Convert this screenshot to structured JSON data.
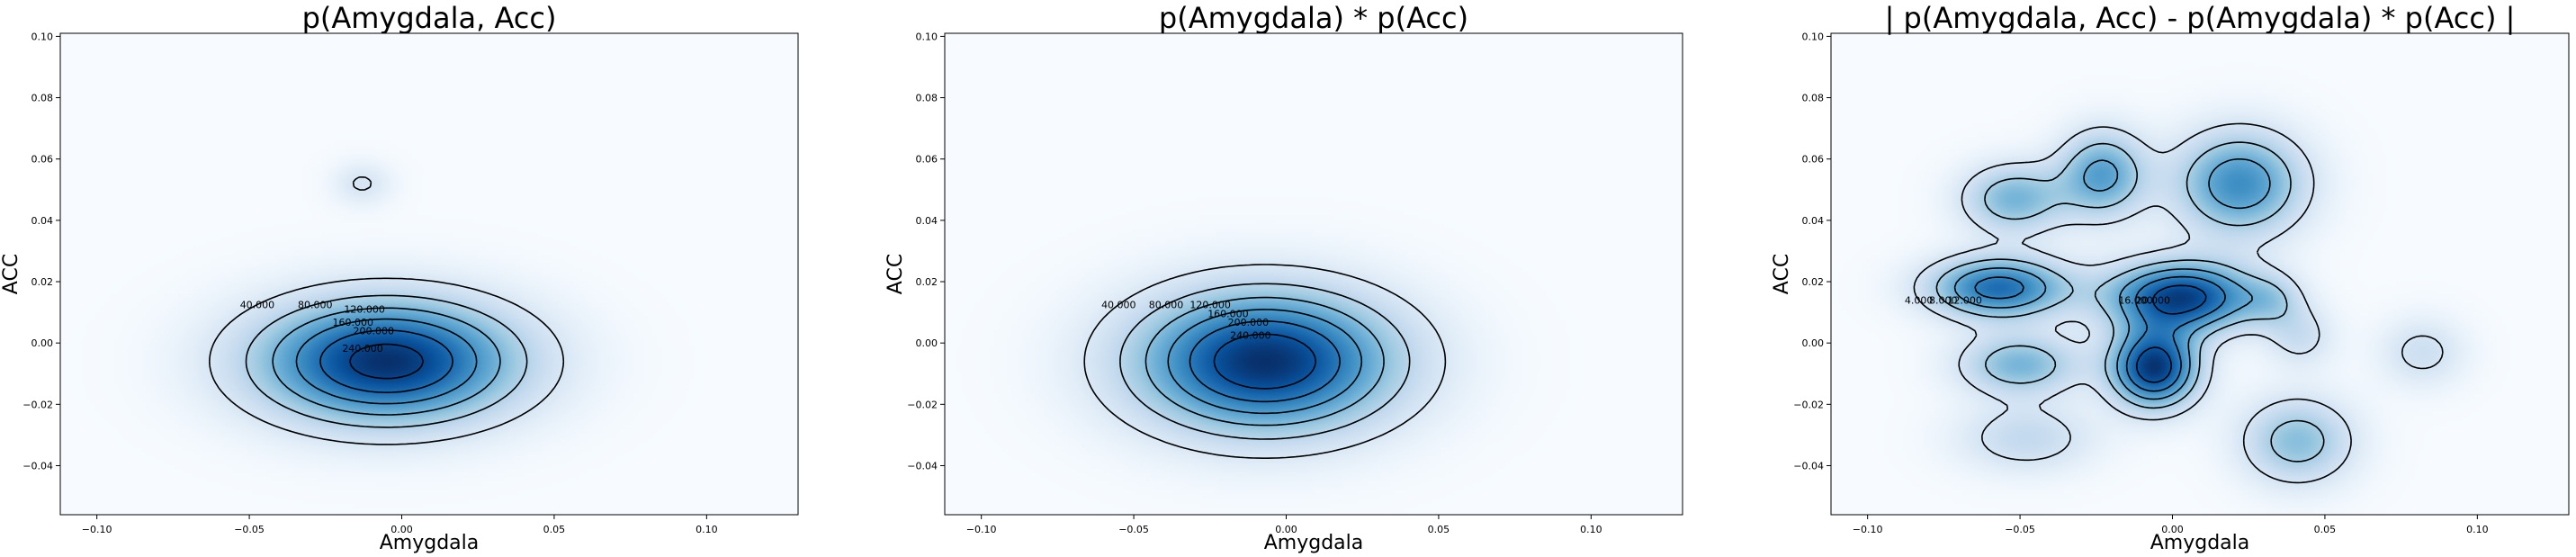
{
  "chart_data": [
    {
      "type": "heatmap",
      "title": "p(Amygdala, Acc)",
      "xlabel": "Amygdala",
      "ylabel": "ACC",
      "xlim": [
        -0.112,
        0.13
      ],
      "ylim": [
        -0.056,
        0.101
      ],
      "xticks": [
        "−0.10",
        "−0.05",
        "0.00",
        "0.05",
        "0.10"
      ],
      "xtick_values": [
        -0.1,
        -0.05,
        0.0,
        0.05,
        0.1
      ],
      "yticks": [
        "−0.04",
        "−0.02",
        "0.00",
        "0.02",
        "0.04",
        "0.06",
        "0.08",
        "0.10"
      ],
      "ytick_values": [
        -0.04,
        -0.02,
        0.0,
        0.02,
        0.04,
        0.06,
        0.08,
        0.1
      ],
      "colormap": "Blues",
      "contour_levels": [
        {
          "value": 40,
          "label": "40.000"
        },
        {
          "value": 80,
          "label": "80.000"
        },
        {
          "value": 120,
          "label": "120.000"
        },
        {
          "value": 160,
          "label": "160.000"
        },
        {
          "value": 200,
          "label": "200.000"
        },
        {
          "value": 240,
          "label": "240.000"
        }
      ],
      "blobs": [
        {
          "x": -0.005,
          "y": -0.006,
          "sx": 0.03,
          "sy": 0.014,
          "amp": 260
        },
        {
          "x": -0.013,
          "y": 0.052,
          "sx": 0.007,
          "sy": 0.005,
          "amp": 44
        }
      ]
    },
    {
      "type": "heatmap",
      "title": "p(Amygdala) * p(Acc)",
      "xlabel": "Amygdala",
      "ylabel": "ACC",
      "xlim": [
        -0.112,
        0.13
      ],
      "ylim": [
        -0.056,
        0.101
      ],
      "xticks": [
        "−0.10",
        "−0.05",
        "0.00",
        "0.05",
        "0.10"
      ],
      "xtick_values": [
        -0.1,
        -0.05,
        0.0,
        0.05,
        0.1
      ],
      "yticks": [
        "−0.04",
        "−0.02",
        "0.00",
        "0.02",
        "0.04",
        "0.06",
        "0.08",
        "0.10"
      ],
      "ytick_values": [
        -0.04,
        -0.02,
        0.0,
        0.02,
        0.04,
        0.06,
        0.08,
        0.1
      ],
      "colormap": "Blues",
      "contour_levels": [
        {
          "value": 40,
          "label": "40.000"
        },
        {
          "value": 80,
          "label": "80.000"
        },
        {
          "value": 120,
          "label": "120.000"
        },
        {
          "value": 160,
          "label": "160.000"
        },
        {
          "value": 200,
          "label": "200.000"
        },
        {
          "value": 240,
          "label": "240.000"
        }
      ],
      "blobs": [
        {
          "x": -0.007,
          "y": -0.006,
          "sx": 0.03,
          "sy": 0.016,
          "amp": 280
        }
      ]
    },
    {
      "type": "heatmap",
      "title": "| p(Amygdala, Acc) - p(Amygdala) * p(Acc) |",
      "xlabel": "Amygdala",
      "ylabel": "ACC",
      "xlim": [
        -0.112,
        0.13
      ],
      "ylim": [
        -0.056,
        0.101
      ],
      "xticks": [
        "−0.10",
        "−0.05",
        "0.00",
        "0.05",
        "0.10"
      ],
      "xtick_values": [
        -0.1,
        -0.05,
        0.0,
        0.05,
        0.1
      ],
      "yticks": [
        "−0.04",
        "−0.02",
        "0.00",
        "0.02",
        "0.04",
        "0.06",
        "0.08",
        "0.10"
      ],
      "ytick_values": [
        -0.04,
        -0.02,
        0.0,
        0.02,
        0.04,
        0.06,
        0.08,
        0.1
      ],
      "colormap": "Blues",
      "contour_levels": [
        {
          "value": 4,
          "label": "4.000"
        },
        {
          "value": 8,
          "label": "8.000"
        },
        {
          "value": 12,
          "label": "12.000"
        },
        {
          "value": 16,
          "label": "16.000"
        },
        {
          "value": 20,
          "label": "20.000"
        }
      ],
      "blobs": [
        {
          "x": -0.052,
          "y": 0.047,
          "sx": 0.012,
          "sy": 0.008,
          "amp": 11
        },
        {
          "x": -0.023,
          "y": 0.055,
          "sx": 0.01,
          "sy": 0.01,
          "amp": 13
        },
        {
          "x": 0.022,
          "y": 0.052,
          "sx": 0.015,
          "sy": 0.012,
          "amp": 15
        },
        {
          "x": -0.057,
          "y": 0.018,
          "sx": 0.016,
          "sy": 0.007,
          "amp": 18
        },
        {
          "x": 0.003,
          "y": 0.015,
          "sx": 0.017,
          "sy": 0.008,
          "amp": 22
        },
        {
          "x": 0.033,
          "y": 0.014,
          "sx": 0.007,
          "sy": 0.006,
          "amp": 5
        },
        {
          "x": -0.05,
          "y": -0.007,
          "sx": 0.014,
          "sy": 0.007,
          "amp": 11
        },
        {
          "x": -0.006,
          "y": -0.008,
          "sx": 0.01,
          "sy": 0.009,
          "amp": 23
        },
        {
          "x": 0.042,
          "y": 0.002,
          "sx": 0.008,
          "sy": 0.007,
          "amp": 5
        },
        {
          "x": 0.082,
          "y": -0.003,
          "sx": 0.01,
          "sy": 0.008,
          "amp": 5
        },
        {
          "x": -0.048,
          "y": -0.031,
          "sx": 0.016,
          "sy": 0.008,
          "amp": 6
        },
        {
          "x": 0.041,
          "y": -0.032,
          "sx": 0.013,
          "sy": 0.01,
          "amp": 10
        }
      ]
    }
  ]
}
